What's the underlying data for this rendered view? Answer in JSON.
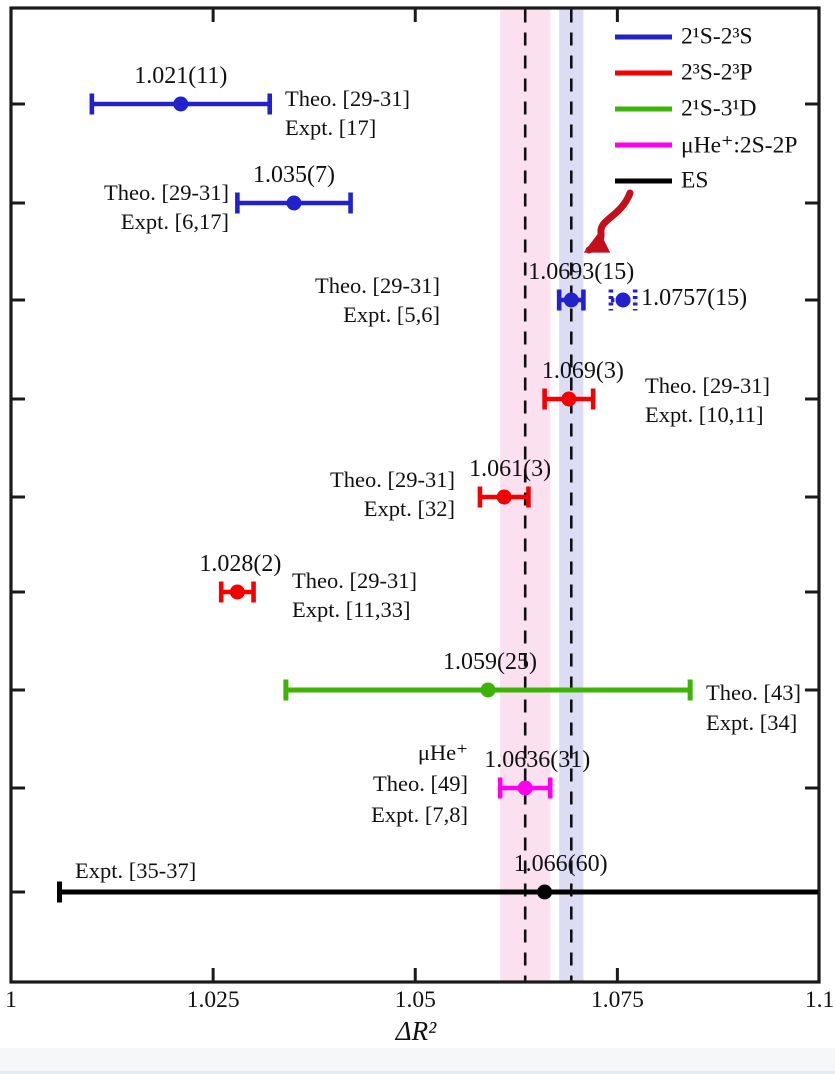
{
  "figure": {
    "xlabel": "ΔR²",
    "background": "#ffffff"
  },
  "axis": {
    "xlim": [
      1,
      1.1
    ],
    "x_ticks": [
      {
        "value": 1,
        "label": "1"
      },
      {
        "value": 1.025,
        "label": "1.025"
      },
      {
        "value": 1.05,
        "label": "1.05"
      },
      {
        "value": 1.075,
        "label": "1.075"
      },
      {
        "value": 1.1,
        "label": "1.1"
      }
    ]
  },
  "colors": {
    "blue": "#2222cc",
    "red": "#f40000",
    "green": "#3db306",
    "magenta": "#ff00ee",
    "black": "#000000",
    "band_pink": "#fbe0f0",
    "band_lavender": "#dcdcf4",
    "dashed_line": "#111111",
    "arrow": "#c3101c"
  },
  "legend": {
    "items": [
      {
        "label": "2¹S-2³S",
        "color_key": "blue"
      },
      {
        "label": "2³S-2³P",
        "color_key": "red"
      },
      {
        "label": "2¹S-3¹D",
        "color_key": "green"
      },
      {
        "label": "μHe⁺:2S-2P",
        "color_key": "magenta"
      },
      {
        "label": "ES",
        "color_key": "black"
      }
    ]
  },
  "chart_data": {
    "type": "scatter",
    "xlabel": "ΔR²",
    "xlim": [
      1,
      1.1
    ],
    "grid": false,
    "legend_position": "top-right",
    "bands": [
      {
        "from": 1.0605,
        "to": 1.0667,
        "color_key": "band_pink",
        "meaning": "uncertainty band of 1.0636(31)"
      },
      {
        "from": 1.0678,
        "to": 1.0708,
        "color_key": "band_lavender",
        "meaning": "uncertainty band of 1.0693(15)"
      }
    ],
    "reference_lines": [
      {
        "value": 1.0636,
        "style": "dashed"
      },
      {
        "value": 1.0693,
        "style": "dashed"
      }
    ],
    "points": [
      {
        "series": "2¹S-2³S",
        "color_key": "blue",
        "value": 1.021,
        "uncertainty": 0.011,
        "label": "1.021(11)",
        "refs": [
          "Theo. [29-31]",
          "Expt. [17]"
        ],
        "ref_side": "right"
      },
      {
        "series": "2¹S-2³S",
        "color_key": "blue",
        "value": 1.035,
        "uncertainty": 0.007,
        "label": "1.035(7)",
        "refs": [
          "Theo. [29-31]",
          "Expt. [6,17]"
        ],
        "ref_side": "left"
      },
      {
        "series": "2¹S-2³S",
        "color_key": "blue",
        "value": 1.0693,
        "uncertainty": 0.0015,
        "label": "1.0693(15)",
        "refs": [
          "Theo. [29-31]",
          "Expt. [5,6]"
        ],
        "ref_side": "left",
        "secondary": {
          "value": 1.0757,
          "uncertainty": 0.0015,
          "label": "1.0757(15)",
          "style": "dotted"
        }
      },
      {
        "series": "2³S-2³P",
        "color_key": "red",
        "value": 1.069,
        "uncertainty": 0.003,
        "label": "1.069(3)",
        "refs": [
          "Theo. [29-31]",
          "Expt. [10,11]"
        ],
        "ref_side": "right"
      },
      {
        "series": "2³S-2³P",
        "color_key": "red",
        "value": 1.061,
        "uncertainty": 0.003,
        "label": "1.061(3)",
        "refs": [
          "Theo. [29-31]",
          "Expt. [32]"
        ],
        "ref_side": "left"
      },
      {
        "series": "2³S-2³P",
        "color_key": "red",
        "value": 1.028,
        "uncertainty": 0.002,
        "label": "1.028(2)",
        "refs": [
          "Theo. [29-31]",
          "Expt. [11,33]"
        ],
        "ref_side": "right"
      },
      {
        "series": "2¹S-3¹D",
        "color_key": "green",
        "value": 1.059,
        "uncertainty": 0.025,
        "label": "1.059(25)",
        "refs": [
          "Theo. [43]",
          "Expt. [34]"
        ],
        "ref_side": "right"
      },
      {
        "series": "μHe⁺:2S-2P",
        "color_key": "magenta",
        "value": 1.0636,
        "uncertainty": 0.0031,
        "label": "1.0636(31)",
        "refs": [
          "μHe⁺",
          "Theo. [49]",
          "Expt. [7,8]"
        ],
        "ref_side": "left"
      },
      {
        "series": "ES",
        "color_key": "black",
        "value": 1.066,
        "uncertainty": 0.06,
        "label": "1.066(60)",
        "refs": [
          "Expt. [35-37]"
        ],
        "ref_side": "right",
        "clip_right": true
      }
    ],
    "annotation": {
      "type": "arrow",
      "color_key": "arrow",
      "points_to": "1.0693(15)"
    }
  }
}
